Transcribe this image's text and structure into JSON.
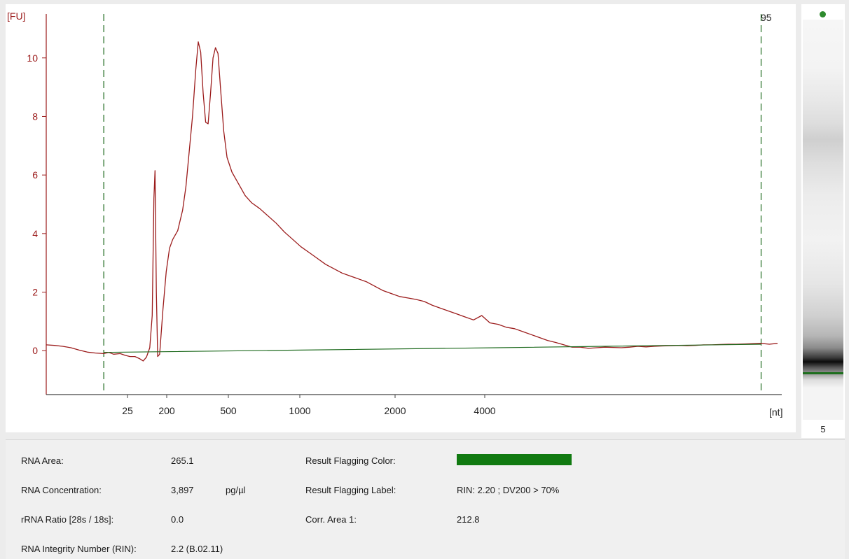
{
  "electropherogram": {
    "y_unit": "[FU]",
    "x_unit": "[nt]",
    "marker_label": "95",
    "trace_color": "#9b1b1b",
    "baseline_color": "#1f6b1f",
    "chart_data": {
      "type": "line",
      "title": "",
      "ylabel": "[FU]",
      "xlabel": "[nt]",
      "ylim": [
        -1.5,
        11.5
      ],
      "y_ticks": [
        0,
        2,
        4,
        6,
        8,
        10
      ],
      "x_ticks": [
        "25",
        "200",
        "500",
        "1000",
        "2000",
        "4000"
      ],
      "series": [
        {
          "points": [
            [
              -3.5,
              0.2
            ],
            [
              -3.0,
              0.18
            ],
            [
              -2.5,
              0.15
            ],
            [
              -2.0,
              0.1
            ],
            [
              -1.5,
              0.02
            ],
            [
              -1.0,
              -0.05
            ],
            [
              -0.5,
              -0.08
            ],
            [
              0.0,
              -0.1
            ],
            [
              0.3,
              -0.06
            ],
            [
              0.6,
              -0.12
            ],
            [
              1.0,
              -0.1
            ],
            [
              1.3,
              -0.16
            ],
            [
              1.6,
              -0.2
            ],
            [
              1.9,
              -0.2
            ],
            [
              2.2,
              -0.28
            ],
            [
              2.4,
              -0.35
            ],
            [
              2.6,
              -0.22
            ],
            [
              2.8,
              0.1
            ],
            [
              2.95,
              1.2
            ],
            [
              3.05,
              5.2
            ],
            [
              3.12,
              6.15
            ],
            [
              3.2,
              2.0
            ],
            [
              3.28,
              -0.2
            ],
            [
              3.4,
              -0.12
            ],
            [
              3.6,
              1.4
            ],
            [
              3.8,
              2.7
            ],
            [
              4.0,
              3.5
            ],
            [
              4.2,
              3.8
            ],
            [
              4.5,
              4.1
            ],
            [
              4.8,
              4.8
            ],
            [
              5.0,
              5.6
            ],
            [
              5.2,
              6.8
            ],
            [
              5.4,
              8.0
            ],
            [
              5.6,
              9.6
            ],
            [
              5.75,
              10.55
            ],
            [
              5.9,
              10.2
            ],
            [
              6.05,
              8.8
            ],
            [
              6.2,
              7.8
            ],
            [
              6.35,
              7.75
            ],
            [
              6.5,
              8.8
            ],
            [
              6.65,
              10.0
            ],
            [
              6.8,
              10.35
            ],
            [
              6.95,
              10.15
            ],
            [
              7.1,
              9.0
            ],
            [
              7.3,
              7.5
            ],
            [
              7.5,
              6.6
            ],
            [
              7.8,
              6.1
            ],
            [
              8.2,
              5.7
            ],
            [
              8.6,
              5.3
            ],
            [
              9.0,
              5.05
            ],
            [
              9.5,
              4.85
            ],
            [
              10.0,
              4.6
            ],
            [
              10.5,
              4.35
            ],
            [
              11.0,
              4.05
            ],
            [
              11.5,
              3.8
            ],
            [
              12.0,
              3.55
            ],
            [
              12.5,
              3.35
            ],
            [
              13.0,
              3.15
            ],
            [
              13.5,
              2.95
            ],
            [
              14.0,
              2.8
            ],
            [
              14.5,
              2.65
            ],
            [
              15.0,
              2.55
            ],
            [
              15.5,
              2.45
            ],
            [
              16.0,
              2.35
            ],
            [
              16.5,
              2.2
            ],
            [
              17.0,
              2.05
            ],
            [
              17.5,
              1.95
            ],
            [
              18.0,
              1.85
            ],
            [
              18.5,
              1.8
            ],
            [
              19.0,
              1.75
            ],
            [
              19.5,
              1.68
            ],
            [
              20.0,
              1.55
            ],
            [
              20.5,
              1.45
            ],
            [
              21.0,
              1.35
            ],
            [
              21.5,
              1.25
            ],
            [
              22.0,
              1.15
            ],
            [
              22.5,
              1.05
            ],
            [
              23.0,
              1.2
            ],
            [
              23.5,
              0.95
            ],
            [
              24.0,
              0.9
            ],
            [
              24.5,
              0.8
            ],
            [
              25.0,
              0.75
            ],
            [
              25.5,
              0.65
            ],
            [
              26.0,
              0.55
            ],
            [
              26.5,
              0.45
            ],
            [
              27.0,
              0.35
            ],
            [
              27.5,
              0.28
            ],
            [
              28.0,
              0.2
            ],
            [
              28.5,
              0.12
            ],
            [
              29.0,
              0.12
            ],
            [
              29.5,
              0.08
            ],
            [
              30.0,
              0.1
            ],
            [
              30.5,
              0.12
            ],
            [
              31.0,
              0.11
            ],
            [
              31.5,
              0.1
            ],
            [
              32.0,
              0.12
            ],
            [
              32.5,
              0.15
            ],
            [
              33.0,
              0.13
            ],
            [
              33.5,
              0.15
            ],
            [
              34.0,
              0.16
            ],
            [
              34.5,
              0.17
            ],
            [
              35.0,
              0.18
            ],
            [
              35.5,
              0.17
            ],
            [
              36.0,
              0.18
            ],
            [
              36.5,
              0.2
            ],
            [
              37.0,
              0.2
            ],
            [
              37.5,
              0.21
            ],
            [
              38.0,
              0.22
            ],
            [
              38.5,
              0.22
            ],
            [
              39.0,
              0.23
            ],
            [
              39.5,
              0.24
            ],
            [
              40.0,
              0.25
            ],
            [
              40.5,
              0.22
            ],
            [
              41.0,
              0.25
            ]
          ]
        },
        {
          "points": [
            [
              0.0,
              -0.06
            ],
            [
              12.0,
              0.02
            ],
            [
              24.0,
              0.1
            ],
            [
              40.0,
              0.22
            ]
          ]
        }
      ]
    }
  },
  "gel": {
    "lane_label": "5"
  },
  "results": {
    "rows": [
      {
        "label": "RNA Area:",
        "value": "265.1",
        "unit": "",
        "label2": "Result Flagging Color:",
        "value2": ""
      },
      {
        "label": "RNA Concentration:",
        "value": "3,897",
        "unit": "pg/µl",
        "label2": "Result Flagging Label:",
        "value2": "RIN: 2.20 ; DV200 > 70%"
      },
      {
        "label": "rRNA Ratio [28s / 18s]:",
        "value": "0.0",
        "unit": "",
        "label2": "Corr. Area 1:",
        "value2": "212.8"
      },
      {
        "label": "RNA Integrity Number (RIN):",
        "value": "2.2  (B.02.11)",
        "unit": "",
        "label2": "",
        "value2": ""
      }
    ],
    "flag_color": "#117a11"
  }
}
